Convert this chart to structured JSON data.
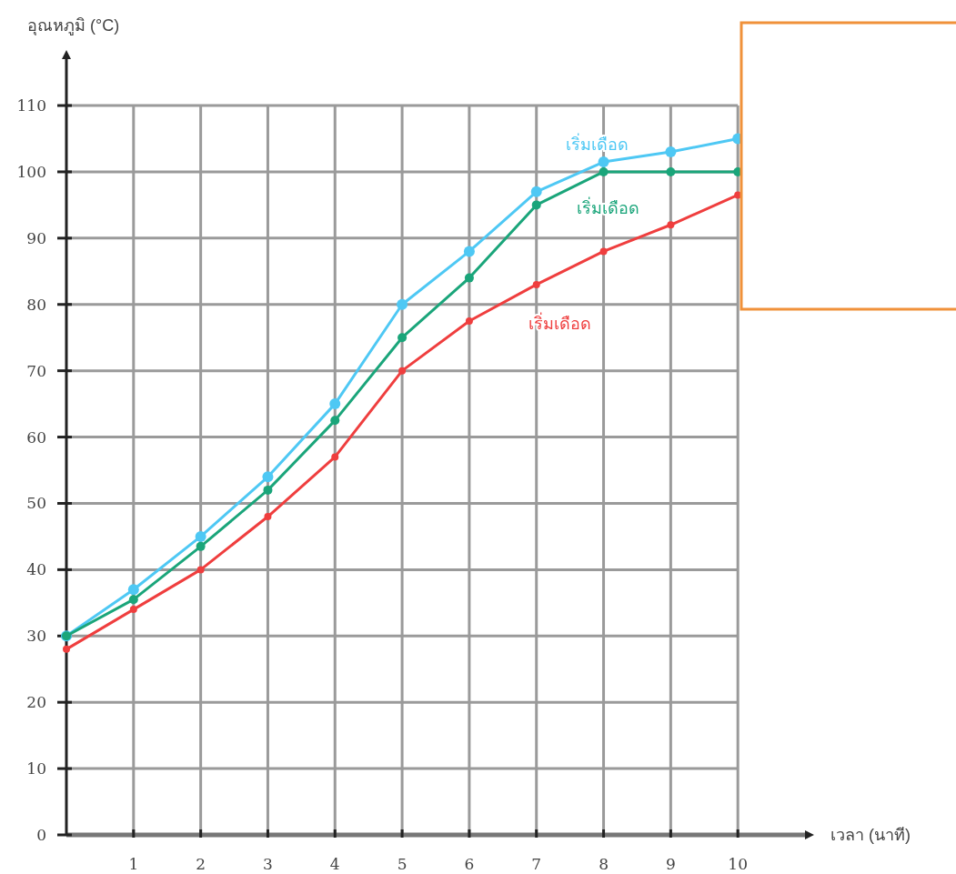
{
  "chart_data": {
    "type": "line",
    "xlabel": "เวลา (นาที)",
    "ylabel": "อุณหภูมิ (°C)",
    "x": [
      0,
      1,
      2,
      3,
      4,
      5,
      6,
      7,
      8,
      9,
      10
    ],
    "series": [
      {
        "name": "เริ่มเดือด",
        "color": "#4ec8f4",
        "values": [
          30,
          37,
          45,
          54,
          65,
          80,
          88,
          97,
          101.5,
          103,
          105
        ]
      },
      {
        "name": "เริ่มเดือด",
        "color": "#1aa57a",
        "values": [
          30,
          35.5,
          43.5,
          52,
          62.5,
          75,
          84,
          95,
          100,
          100,
          100
        ]
      },
      {
        "name": "เริ่มเดือด",
        "color": "#ef3e3e",
        "values": [
          28,
          34,
          40,
          48,
          57,
          70,
          77.5,
          83,
          88,
          92,
          96.5
        ]
      }
    ],
    "xlim": [
      0,
      11
    ],
    "ylim": [
      0,
      117
    ],
    "xticks": [
      1,
      2,
      3,
      4,
      5,
      6,
      7,
      8,
      9,
      10
    ],
    "yticks": [
      0,
      10,
      20,
      30,
      40,
      50,
      60,
      70,
      80,
      90,
      100,
      110
    ],
    "grid": true,
    "marker": "circle",
    "line_style": "solid"
  }
}
